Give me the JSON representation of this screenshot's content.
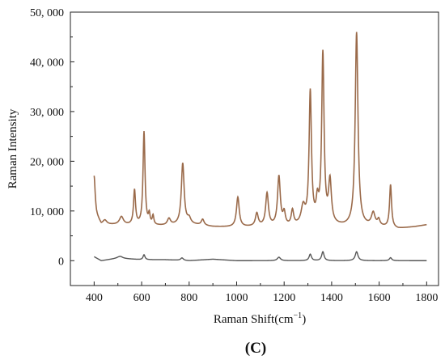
{
  "chart_data": {
    "type": "line",
    "title": "",
    "panel_label": "(C)",
    "xlabel": "Raman Shift(cm",
    "xlabel_sup": "−1",
    "xlabel_suffix": ")",
    "ylabel": "Raman Intensity",
    "xlim": [
      300,
      1850
    ],
    "ylim": [
      -5000,
      50000
    ],
    "x_ticks": [
      400,
      600,
      800,
      1000,
      1200,
      1400,
      1600,
      1800
    ],
    "x_tick_labels": [
      "400",
      "600",
      "800",
      "1000",
      "1200",
      "1400",
      "1600",
      "1800"
    ],
    "y_ticks": [
      0,
      10000,
      20000,
      30000,
      40000,
      50000
    ],
    "y_tick_labels": [
      "0",
      "10, 000",
      "20, 000",
      "30, 000",
      "40, 000",
      "50, 000"
    ],
    "grid": false,
    "legend": "none",
    "series": [
      {
        "color": "#9a6a4a",
        "baseline": [
          [
            400,
            11000
          ],
          [
            410,
            9000
          ],
          [
            430,
            7200
          ],
          [
            500,
            7200
          ],
          [
            600,
            7000
          ],
          [
            700,
            7000
          ],
          [
            800,
            7300
          ],
          [
            900,
            6800
          ],
          [
            1000,
            6700
          ],
          [
            1100,
            6800
          ],
          [
            1200,
            6700
          ],
          [
            1300,
            7000
          ],
          [
            1400,
            7000
          ],
          [
            1450,
            6800
          ],
          [
            1500,
            6800
          ],
          [
            1600,
            6800
          ],
          [
            1680,
            6400
          ],
          [
            1750,
            6800
          ],
          [
            1800,
            7200
          ]
        ],
        "peaks": [
          {
            "x": 400,
            "height": 6000,
            "width": 5
          },
          {
            "x": 445,
            "height": 900,
            "width": 10
          },
          {
            "x": 515,
            "height": 1600,
            "width": 10
          },
          {
            "x": 570,
            "height": 7000,
            "width": 5
          },
          {
            "x": 610,
            "height": 18800,
            "width": 5
          },
          {
            "x": 632,
            "height": 2000,
            "width": 4
          },
          {
            "x": 648,
            "height": 1800,
            "width": 4
          },
          {
            "x": 715,
            "height": 1300,
            "width": 8
          },
          {
            "x": 773,
            "height": 12300,
            "width": 7
          },
          {
            "x": 800,
            "height": 1000,
            "width": 8
          },
          {
            "x": 857,
            "height": 1200,
            "width": 7
          },
          {
            "x": 1005,
            "height": 6000,
            "width": 7
          },
          {
            "x": 1085,
            "height": 2600,
            "width": 7
          },
          {
            "x": 1128,
            "height": 6600,
            "width": 7
          },
          {
            "x": 1178,
            "height": 10000,
            "width": 7
          },
          {
            "x": 1200,
            "height": 2500,
            "width": 6
          },
          {
            "x": 1235,
            "height": 3000,
            "width": 6
          },
          {
            "x": 1280,
            "height": 3500,
            "width": 10
          },
          {
            "x": 1310,
            "height": 26500,
            "width": 6
          },
          {
            "x": 1340,
            "height": 4000,
            "width": 6
          },
          {
            "x": 1363,
            "height": 34200,
            "width": 6
          },
          {
            "x": 1393,
            "height": 8500,
            "width": 7
          },
          {
            "x": 1505,
            "height": 39000,
            "width": 7
          },
          {
            "x": 1575,
            "height": 2600,
            "width": 9
          },
          {
            "x": 1598,
            "height": 1200,
            "width": 6
          },
          {
            "x": 1648,
            "height": 8600,
            "width": 5
          }
        ]
      },
      {
        "color": "#555555",
        "baseline": [
          [
            400,
            800
          ],
          [
            430,
            0
          ],
          [
            500,
            500
          ],
          [
            600,
            200
          ],
          [
            700,
            200
          ],
          [
            800,
            0
          ],
          [
            900,
            300
          ],
          [
            1000,
            0
          ],
          [
            1100,
            0
          ],
          [
            1200,
            0
          ],
          [
            1300,
            0
          ],
          [
            1400,
            0
          ],
          [
            1500,
            0
          ],
          [
            1600,
            0
          ],
          [
            1700,
            0
          ],
          [
            1800,
            0
          ]
        ],
        "peaks": [
          {
            "x": 510,
            "height": 400,
            "width": 12
          },
          {
            "x": 610,
            "height": 1000,
            "width": 5
          },
          {
            "x": 770,
            "height": 500,
            "width": 7
          },
          {
            "x": 1178,
            "height": 700,
            "width": 8
          },
          {
            "x": 1310,
            "height": 1300,
            "width": 6
          },
          {
            "x": 1363,
            "height": 1800,
            "width": 6
          },
          {
            "x": 1505,
            "height": 1800,
            "width": 7
          },
          {
            "x": 1648,
            "height": 600,
            "width": 6
          }
        ]
      }
    ]
  }
}
